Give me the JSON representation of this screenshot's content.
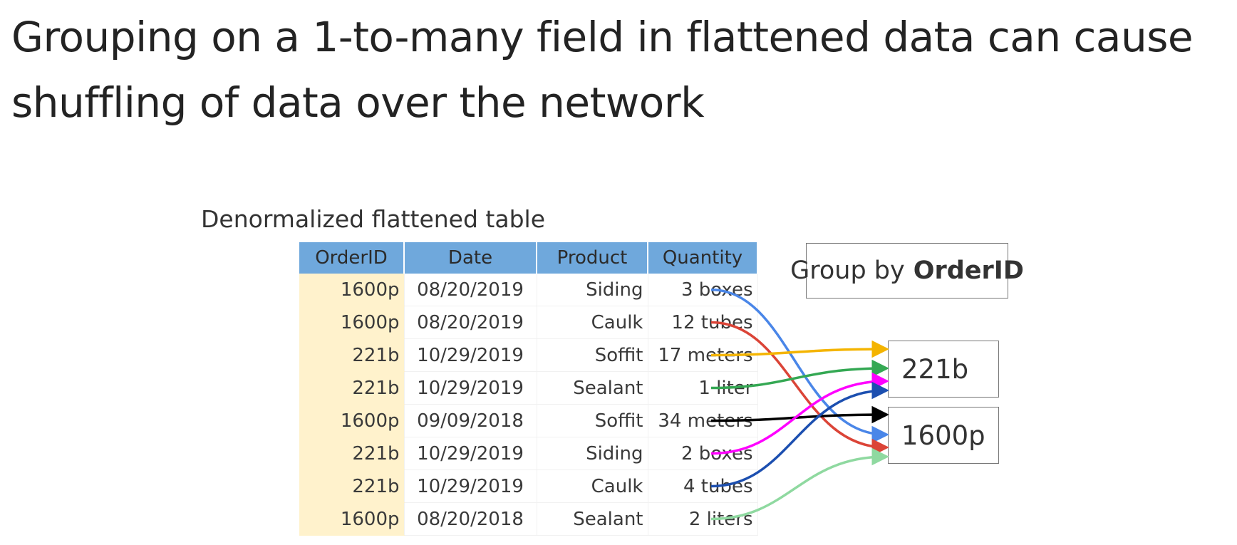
{
  "title": "Grouping on a 1-to-many field in flattened data can cause shuffling of data over the network",
  "table": {
    "caption": "Denormalized flattened table",
    "headers": [
      "OrderID",
      "Date",
      "Product",
      "Quantity"
    ],
    "rows": [
      {
        "order_id": "1600p",
        "date": "08/20/2019",
        "product": "Siding",
        "quantity": "3 boxes"
      },
      {
        "order_id": "1600p",
        "date": "08/20/2019",
        "product": "Caulk",
        "quantity": "12 tubes"
      },
      {
        "order_id": "221b",
        "date": "10/29/2019",
        "product": "Soffit",
        "quantity": "17 meters"
      },
      {
        "order_id": "221b",
        "date": "10/29/2019",
        "product": "Sealant",
        "quantity": "1 liter"
      },
      {
        "order_id": "1600p",
        "date": "09/09/2018",
        "product": "Soffit",
        "quantity": "34 meters"
      },
      {
        "order_id": "221b",
        "date": "10/29/2019",
        "product": "Siding",
        "quantity": "2 boxes"
      },
      {
        "order_id": "221b",
        "date": "10/29/2019",
        "product": "Caulk",
        "quantity": "4 tubes"
      },
      {
        "order_id": "1600p",
        "date": "08/20/2018",
        "product": "Sealant",
        "quantity": "2 liters"
      }
    ]
  },
  "group_label": {
    "prefix": "Group by",
    "field": "OrderID"
  },
  "buckets": [
    "221b",
    "1600p"
  ],
  "arrows": [
    {
      "row": 0,
      "target": "1600p",
      "color": "#4a86e8"
    },
    {
      "row": 1,
      "target": "1600p",
      "color": "#db4437"
    },
    {
      "row": 2,
      "target": "221b",
      "color": "#f4b400"
    },
    {
      "row": 3,
      "target": "221b",
      "color": "#34a853"
    },
    {
      "row": 4,
      "target": "1600p",
      "color": "#000000"
    },
    {
      "row": 5,
      "target": "221b",
      "color": "#ff00ff"
    },
    {
      "row": 6,
      "target": "221b",
      "color": "#1c4fb0"
    },
    {
      "row": 7,
      "target": "1600p",
      "color": "#8fd9a0"
    }
  ]
}
